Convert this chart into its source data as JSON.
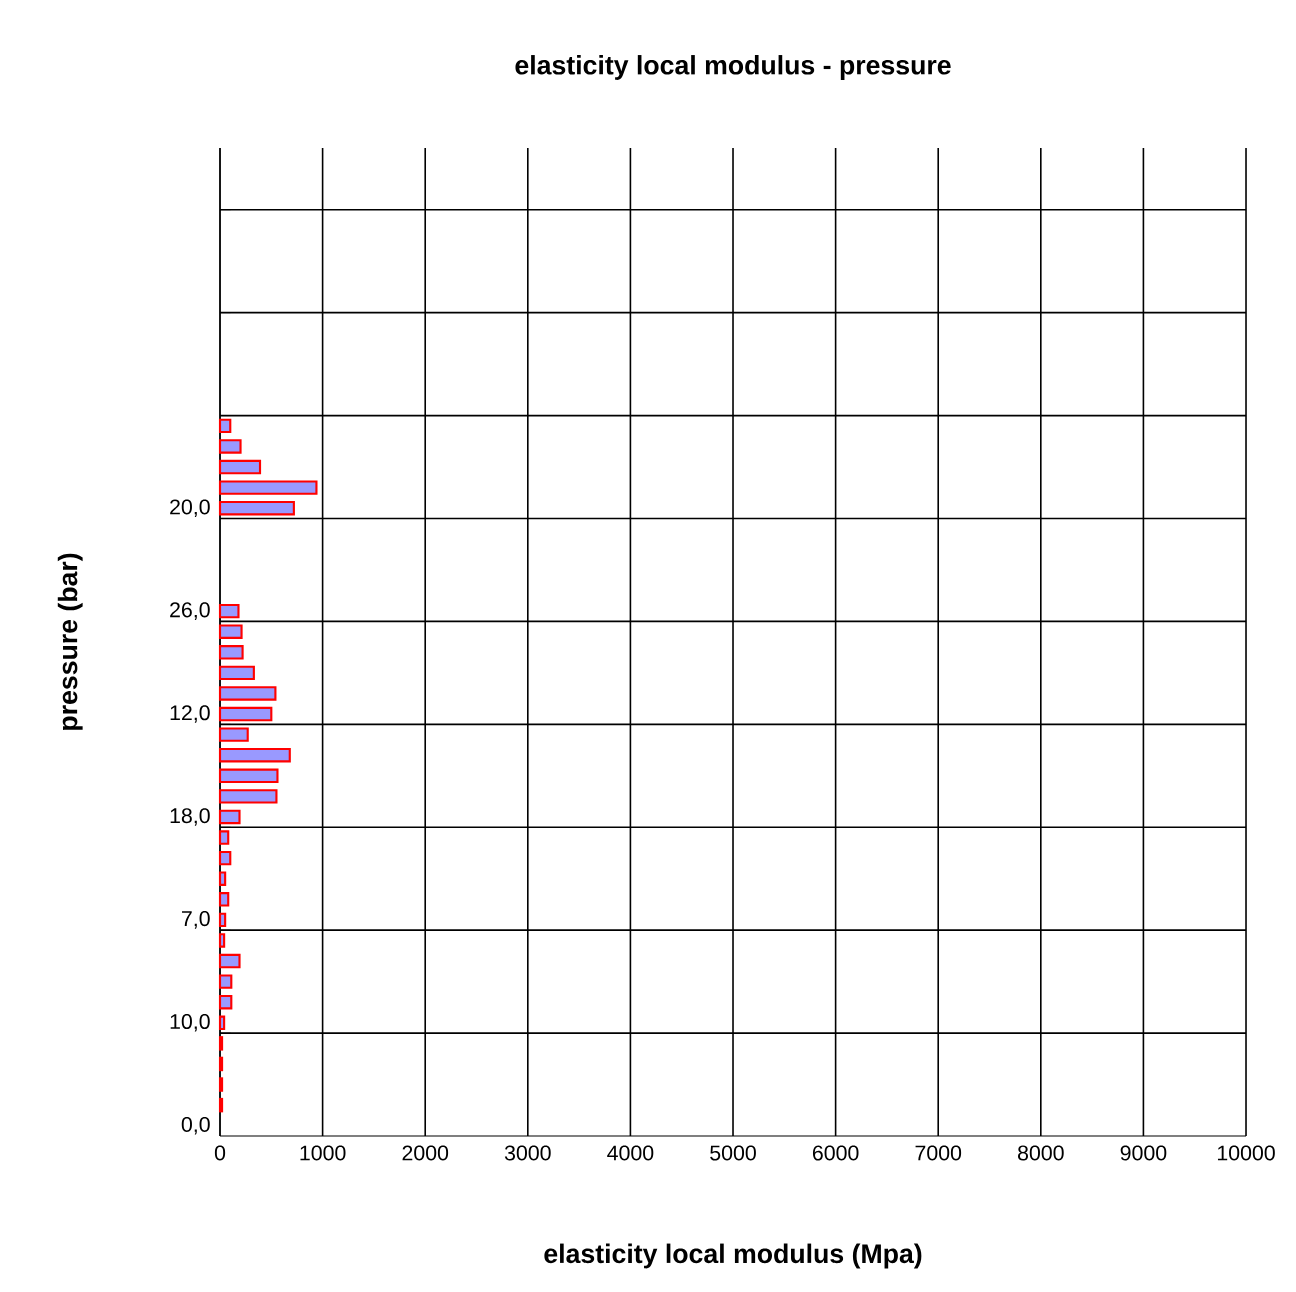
{
  "chart_data": {
    "type": "bar",
    "orientation": "horizontal",
    "title": "elasticity local modulus - pressure",
    "xlabel": "elasticity local modulus (Mpa)",
    "ylabel": "pressure (bar)",
    "categories": [
      null,
      null,
      null,
      null,
      null,
      null,
      null,
      null,
      null,
      null,
      null,
      null,
      null,
      null,
      null,
      null,
      null,
      "20,0",
      null,
      null,
      null,
      null,
      "26,0",
      null,
      null,
      null,
      null,
      "12,0",
      null,
      null,
      null,
      null,
      "18,0",
      null,
      null,
      null,
      null,
      "7,0",
      null,
      null,
      null,
      null,
      "10,0",
      null,
      null,
      null,
      null,
      "0,0"
    ],
    "values": [
      null,
      null,
      null,
      null,
      null,
      null,
      null,
      null,
      null,
      null,
      null,
      null,
      null,
      100,
      200,
      390,
      940,
      720,
      null,
      null,
      null,
      null,
      180,
      210,
      220,
      330,
      540,
      500,
      270,
      680,
      560,
      550,
      190,
      80,
      100,
      50,
      80,
      50,
      40,
      190,
      110,
      110,
      40,
      20,
      20,
      20,
      20,
      null
    ],
    "color": "#9999ff",
    "xlim": [
      0,
      10000
    ],
    "xticks": [
      0,
      1000,
      2000,
      3000,
      4000,
      5000,
      6000,
      7000,
      8000,
      9000,
      10000
    ],
    "grid": true
  }
}
